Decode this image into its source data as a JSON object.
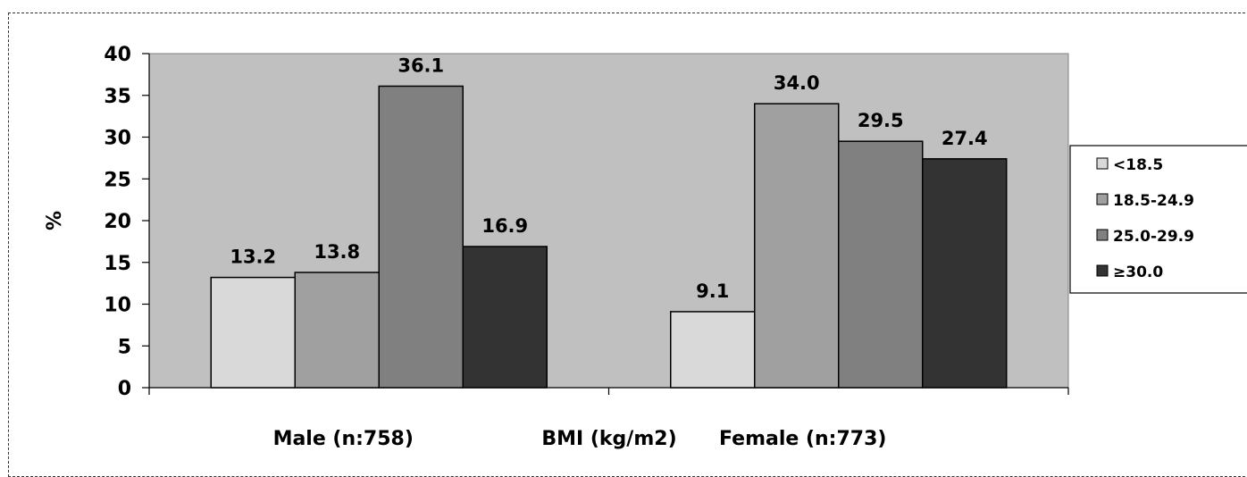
{
  "chart_data": {
    "type": "bar",
    "categories": [
      "Male (n:758)",
      "Female (n:773)"
    ],
    "series": [
      {
        "name": "<18.5",
        "values": [
          13.2,
          9.1
        ],
        "color": "#d9d9d9"
      },
      {
        "name": "18.5-24.9",
        "values": [
          13.8,
          34.0
        ],
        "color": "#a0a0a0"
      },
      {
        "name": "25.0-29.9",
        "values": [
          36.1,
          29.5
        ],
        "color": "#808080"
      },
      {
        "name": "≥30.0",
        "values": [
          16.9,
          27.4
        ],
        "color": "#333333"
      }
    ],
    "data_labels": [
      [
        "13.2",
        "9.1"
      ],
      [
        "13.8",
        "34.0"
      ],
      [
        "36.1",
        "29.5"
      ],
      [
        "16.9",
        "27.4"
      ]
    ],
    "yticks": [
      "0",
      "5",
      "10",
      "15",
      "20",
      "25",
      "30",
      "35",
      "40"
    ],
    "ylim": [
      0,
      40
    ],
    "xlabel": "BMI (kg/m2)",
    "ylabel": "%",
    "plot_background": "#c0c0c0",
    "legend_placement": "right",
    "grid": false
  }
}
